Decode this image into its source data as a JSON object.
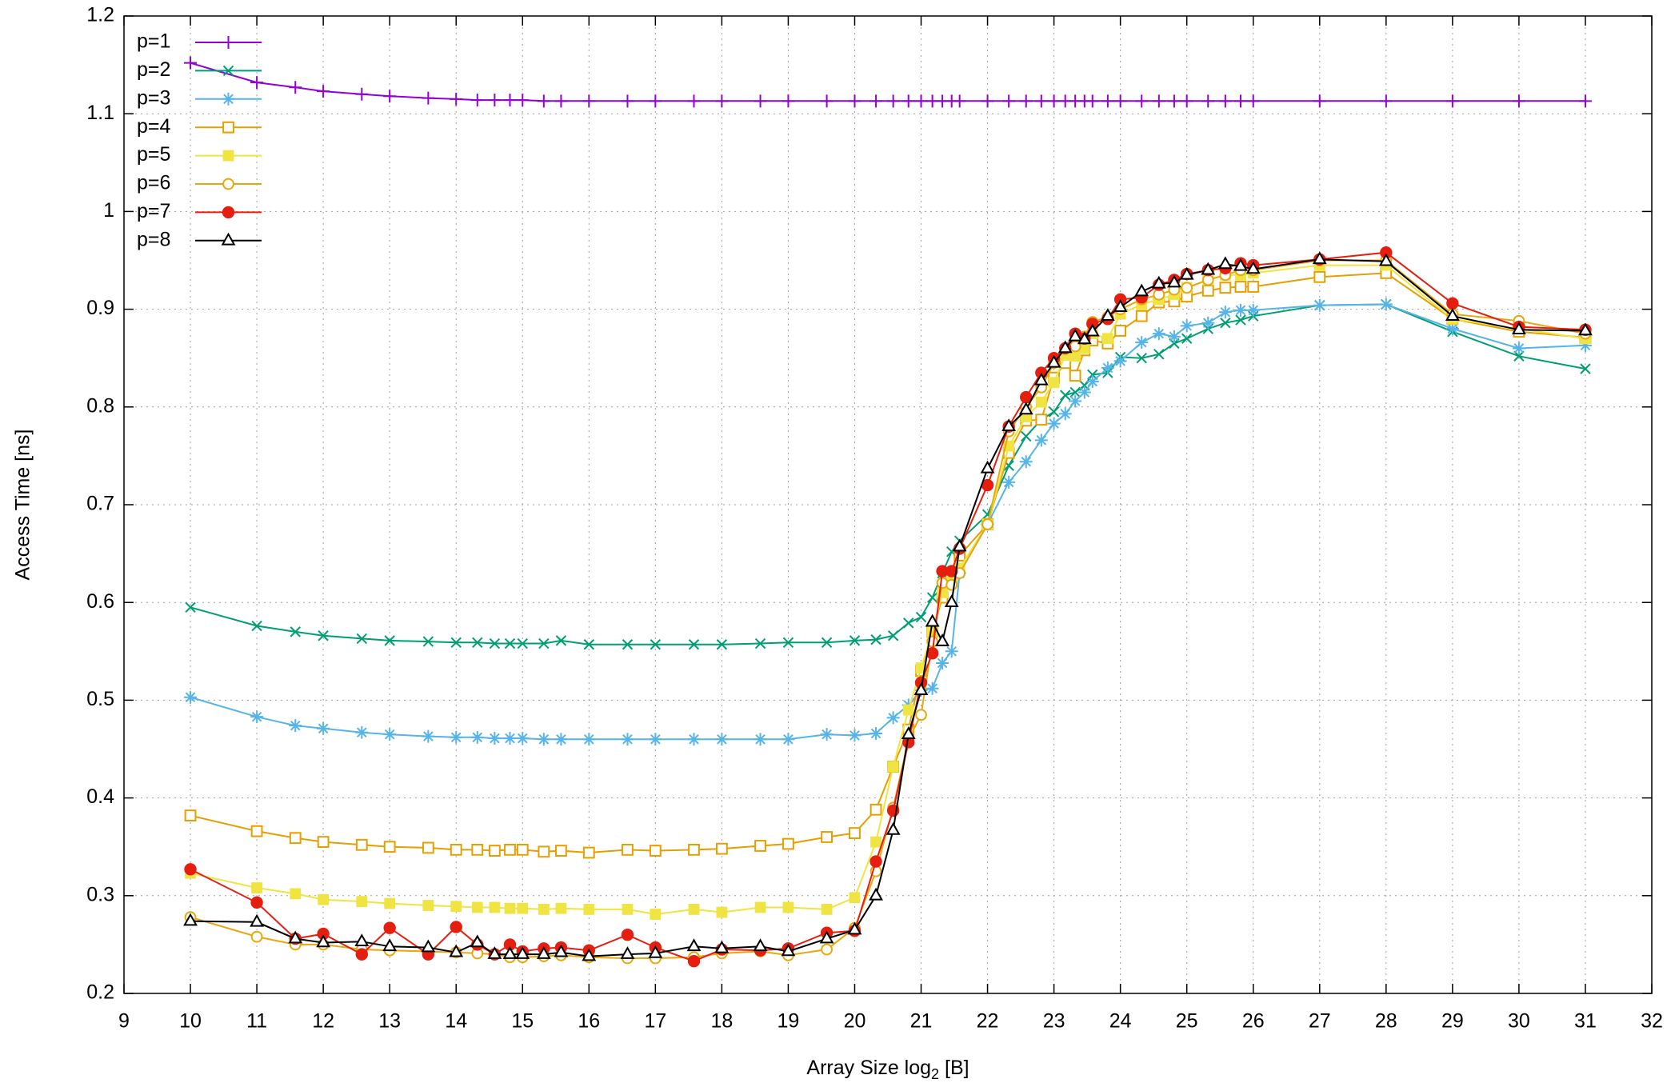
{
  "chart_data": {
    "type": "line",
    "x_label_parts": [
      "Array Size log",
      "2",
      " [B]"
    ],
    "y_label": "Access Time [ns]",
    "x": [
      10,
      11,
      11.58,
      12,
      12.58,
      13,
      13.58,
      14,
      14.32,
      14.58,
      14.81,
      15,
      15.32,
      15.58,
      16,
      16.58,
      17,
      17.58,
      18,
      18.58,
      19,
      19.58,
      20,
      20.32,
      20.58,
      20.81,
      21,
      21.17,
      21.32,
      21.46,
      21.58,
      22,
      22.32,
      22.58,
      22.81,
      23,
      23.17,
      23.32,
      23.46,
      23.58,
      23.81,
      24,
      24.32,
      24.58,
      24.81,
      25,
      25.32,
      25.58,
      25.81,
      26,
      27,
      28,
      29,
      30,
      31
    ],
    "xlim": [
      9,
      32
    ],
    "xticks": [
      9,
      10,
      11,
      12,
      13,
      14,
      15,
      16,
      17,
      18,
      19,
      20,
      21,
      22,
      23,
      24,
      25,
      26,
      27,
      28,
      29,
      30,
      31,
      32
    ],
    "ylim": [
      0.2,
      1.2
    ],
    "yticks": [
      0.2,
      0.3,
      0.4,
      0.5,
      0.6,
      0.7,
      0.8,
      0.9,
      1,
      1.1,
      1.2
    ],
    "grid": true,
    "legend": "top-left",
    "series": [
      {
        "name": "p=1",
        "color": "#9400d3",
        "marker": "plus",
        "values": [
          1.152,
          1.132,
          1.127,
          1.123,
          1.12,
          1.118,
          1.116,
          1.115,
          1.114,
          1.114,
          1.114,
          1.114,
          1.113,
          1.113,
          1.113,
          1.113,
          1.113,
          1.113,
          1.113,
          1.113,
          1.113,
          1.113,
          1.113,
          1.113,
          1.113,
          1.113,
          1.113,
          1.113,
          1.113,
          1.113,
          1.113,
          1.113,
          1.113,
          1.113,
          1.113,
          1.113,
          1.113,
          1.113,
          1.113,
          1.113,
          1.113,
          1.113,
          1.113,
          1.113,
          1.113,
          1.113,
          1.113,
          1.113,
          1.113,
          1.113,
          1.113,
          1.113,
          1.113,
          1.113,
          1.113
        ]
      },
      {
        "name": "p=2",
        "color": "#009e73",
        "marker": "cross",
        "values": [
          0.595,
          0.576,
          0.57,
          0.566,
          0.563,
          0.561,
          0.56,
          0.559,
          0.559,
          0.558,
          0.558,
          0.558,
          0.558,
          0.561,
          0.557,
          0.557,
          0.557,
          0.557,
          0.557,
          0.558,
          0.559,
          0.559,
          0.561,
          0.562,
          0.566,
          0.579,
          0.585,
          0.605,
          0.63,
          0.652,
          0.663,
          0.69,
          0.74,
          0.77,
          0.787,
          0.795,
          0.812,
          0.815,
          0.822,
          0.833,
          0.835,
          0.851,
          0.85,
          0.854,
          0.865,
          0.87,
          0.88,
          0.886,
          0.889,
          0.893,
          0.904,
          0.905,
          0.877,
          0.852,
          0.839
        ]
      },
      {
        "name": "p=3",
        "color": "#56b4e9",
        "marker": "star",
        "values": [
          0.503,
          0.483,
          0.474,
          0.471,
          0.467,
          0.465,
          0.463,
          0.462,
          0.462,
          0.461,
          0.461,
          0.461,
          0.46,
          0.46,
          0.46,
          0.46,
          0.46,
          0.46,
          0.46,
          0.46,
          0.46,
          0.465,
          0.464,
          0.466,
          0.482,
          0.495,
          0.51,
          0.512,
          0.538,
          0.55,
          0.63,
          0.68,
          0.723,
          0.744,
          0.766,
          0.783,
          0.793,
          0.806,
          0.815,
          0.826,
          0.84,
          0.847,
          0.866,
          0.875,
          0.872,
          0.883,
          0.886,
          0.897,
          0.899,
          0.899,
          0.904,
          0.905,
          0.88,
          0.86,
          0.863
        ]
      },
      {
        "name": "p=4",
        "color": "#e69f00",
        "marker": "square-open",
        "values": [
          0.382,
          0.366,
          0.359,
          0.355,
          0.352,
          0.35,
          0.349,
          0.347,
          0.347,
          0.346,
          0.347,
          0.347,
          0.345,
          0.346,
          0.344,
          0.347,
          0.346,
          0.347,
          0.348,
          0.351,
          0.353,
          0.36,
          0.364,
          0.388,
          0.432,
          0.47,
          0.53,
          0.57,
          0.605,
          0.625,
          0.648,
          0.68,
          0.753,
          0.786,
          0.787,
          0.83,
          0.845,
          0.832,
          0.858,
          0.868,
          0.865,
          0.878,
          0.893,
          0.907,
          0.908,
          0.913,
          0.919,
          0.922,
          0.923,
          0.923,
          0.933,
          0.937,
          0.89,
          0.877,
          0.871
        ]
      },
      {
        "name": "p=5",
        "color": "#f0e442",
        "marker": "square",
        "values": [
          0.323,
          0.308,
          0.302,
          0.296,
          0.294,
          0.292,
          0.29,
          0.289,
          0.288,
          0.288,
          0.287,
          0.287,
          0.286,
          0.287,
          0.286,
          0.286,
          0.281,
          0.286,
          0.283,
          0.288,
          0.288,
          0.286,
          0.298,
          0.355,
          0.432,
          0.49,
          0.533,
          0.57,
          0.61,
          0.625,
          0.635,
          0.68,
          0.76,
          0.79,
          0.805,
          0.825,
          0.853,
          0.852,
          0.86,
          0.875,
          0.87,
          0.895,
          0.905,
          0.91,
          0.915,
          0.922,
          0.93,
          0.935,
          0.935,
          0.937,
          0.945,
          0.945,
          0.89,
          0.88,
          0.87
        ]
      },
      {
        "name": "p=6",
        "color": "#e8a80c",
        "marker": "circle-open",
        "values": [
          0.278,
          0.258,
          0.25,
          0.25,
          0.245,
          0.244,
          0.243,
          0.242,
          0.241,
          0.24,
          0.237,
          0.237,
          0.238,
          0.239,
          0.237,
          0.236,
          0.236,
          0.237,
          0.241,
          0.243,
          0.239,
          0.245,
          0.267,
          0.325,
          0.39,
          0.46,
          0.485,
          0.56,
          0.62,
          0.618,
          0.63,
          0.68,
          0.775,
          0.8,
          0.82,
          0.845,
          0.86,
          0.862,
          0.872,
          0.887,
          0.892,
          0.9,
          0.91,
          0.915,
          0.92,
          0.922,
          0.93,
          0.935,
          0.94,
          0.94,
          0.95,
          0.95,
          0.895,
          0.888,
          0.875
        ]
      },
      {
        "name": "p=7",
        "color": "#e51e10",
        "marker": "circle",
        "values": [
          0.327,
          0.293,
          0.256,
          0.261,
          0.24,
          0.267,
          0.24,
          0.268,
          0.25,
          0.24,
          0.25,
          0.243,
          0.246,
          0.247,
          0.244,
          0.26,
          0.247,
          0.233,
          0.245,
          0.244,
          0.246,
          0.262,
          0.264,
          0.335,
          0.387,
          0.457,
          0.518,
          0.548,
          0.632,
          0.632,
          0.655,
          0.72,
          0.78,
          0.81,
          0.835,
          0.85,
          0.86,
          0.875,
          0.87,
          0.885,
          0.89,
          0.91,
          0.912,
          0.925,
          0.93,
          0.936,
          0.94,
          0.942,
          0.947,
          0.945,
          0.951,
          0.958,
          0.906,
          0.882,
          0.879
        ]
      },
      {
        "name": "p=8",
        "color": "#000000",
        "marker": "triangle-open",
        "values": [
          0.274,
          0.273,
          0.256,
          0.252,
          0.253,
          0.248,
          0.247,
          0.242,
          0.252,
          0.24,
          0.24,
          0.24,
          0.24,
          0.242,
          0.238,
          0.24,
          0.241,
          0.248,
          0.246,
          0.248,
          0.243,
          0.256,
          0.265,
          0.3,
          0.367,
          0.465,
          0.51,
          0.58,
          0.56,
          0.6,
          0.657,
          0.737,
          0.78,
          0.797,
          0.827,
          0.845,
          0.86,
          0.872,
          0.869,
          0.877,
          0.893,
          0.902,
          0.918,
          0.926,
          0.927,
          0.935,
          0.94,
          0.946,
          0.944,
          0.941,
          0.951,
          0.949,
          0.893,
          0.879,
          0.878
        ]
      }
    ]
  }
}
